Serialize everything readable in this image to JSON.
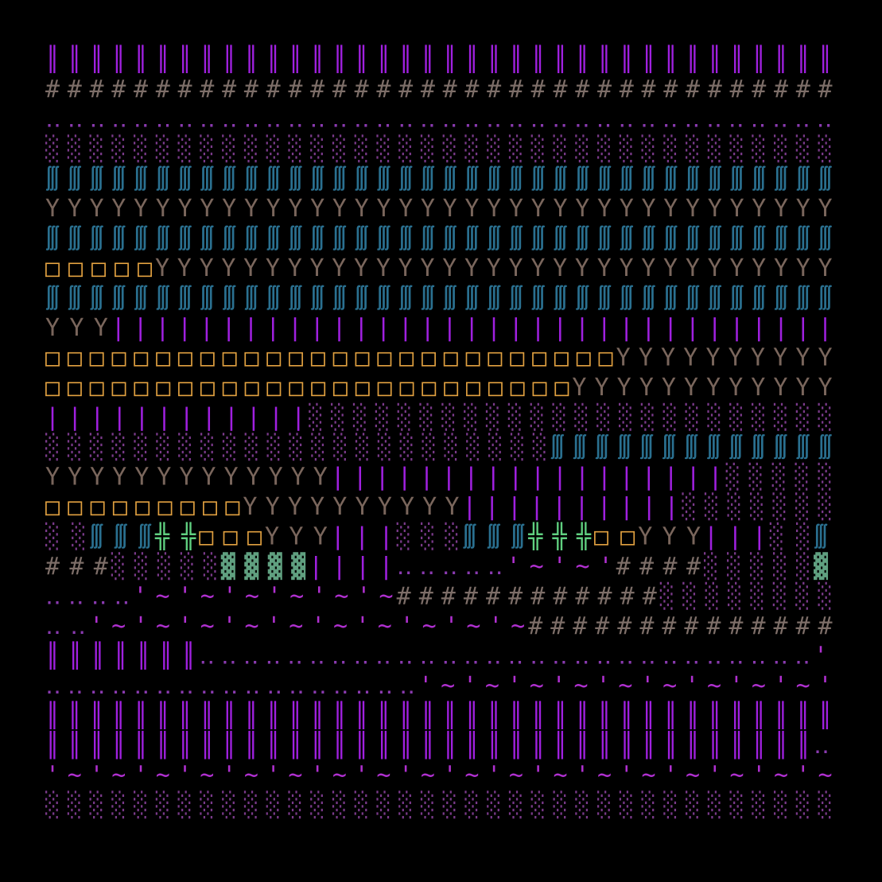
{
  "map": {
    "rows": [
      [
        {
          "text": "║║║║║║║║║║║║║║║║║║║║║║║║║║║║║║║║║║║║",
          "color": "#a020e0"
        }
      ],
      [
        {
          "text": "####################################",
          "color": "#7d6e68"
        }
      ],
      [
        {
          "text": "‥‥‥‥‥‥‥‥‥‥‥‥‥‥‥‥‥‥‥‥‥‥‥‥‥‥‥‥‥‥‥‥‥‥‥‥",
          "color": "#8a3ab0"
        }
      ],
      [
        {
          "text": "░░░░░░░░░░░░░░░░░░░░░░░░░░░░░░░░░░░░",
          "color": "#7a3a8a"
        }
      ],
      [
        {
          "text": "∭∭∭∭∭∭∭∭∭∭∭∭∭∭∭∭∭∭∭∭∭∭∭∭∭∭∭∭∭∭∭∭∭∭∭∭",
          "color": "#2a7090"
        }
      ],
      [
        {
          "text": "YYYYYYYYYYYYYYYYYYYYYYYYYYYYYYYYYYYY",
          "color": "#7a665c"
        }
      ],
      [
        {
          "text": "∭∭∭∭∭∭∭∭∭∭∭∭∭∭∭∭∭∭∭∭∭∭∭∭∭∭∭∭∭∭∭∭∭∭∭∭",
          "color": "#2a7090"
        }
      ],
      [
        {
          "text": "□□□□□",
          "color": "#e0a040"
        },
        {
          "text": "YYYYYYYYYYYYYYYYYYYYYYYYYYYYYYY",
          "color": "#7a665c"
        }
      ],
      [
        {
          "text": "∭∭∭∭∭∭∭∭∭∭∭∭∭∭∭∭∭∭∭∭∭∭∭∭∭∭∭∭∭∭∭∭∭∭∭∭",
          "color": "#2a7090"
        }
      ],
      [
        {
          "text": "YYY",
          "color": "#7a665c"
        },
        {
          "text": "|||||||||||||||||||||||||||||||||",
          "color": "#a020e0"
        }
      ],
      [
        {
          "text": "□□□□□□□□□□□□□□□□□□□□□□□□□□",
          "color": "#e0a040"
        },
        {
          "text": "YYYYYYYYYY",
          "color": "#7a665c"
        }
      ],
      [
        {
          "text": "□□□□□□□□□□□□□□□□□□□□□□□□",
          "color": "#e0a040"
        },
        {
          "text": "YYYYYYYYYYYY",
          "color": "#7a665c"
        }
      ],
      [
        {
          "text": "||||||||||||",
          "color": "#a020e0"
        },
        {
          "text": "░░░░░░░░░░░░░░░░░░░░░░░░",
          "color": "#7a3a8a"
        }
      ],
      [
        {
          "text": "░░░░░░░░░░░░░░░░░░░░░░░",
          "color": "#7a3a8a"
        },
        {
          "text": "∭∭∭∭∭∭∭∭∭∭∭∭∭",
          "color": "#2a7090"
        }
      ],
      [
        {
          "text": "YYYYYYYYYYYYY",
          "color": "#7a665c"
        },
        {
          "text": "||||||||||||||||||",
          "color": "#a020e0"
        },
        {
          "text": "░░░░░",
          "color": "#7a3a8a"
        }
      ],
      [
        {
          "text": "□□□□□□□□□",
          "color": "#e0a040"
        },
        {
          "text": "YYYYYYYYYY",
          "color": "#7a665c"
        },
        {
          "text": "||||||||||",
          "color": "#a020e0"
        },
        {
          "text": "░░░░░░░",
          "color": "#7a3a8a"
        }
      ],
      [
        {
          "text": "░░",
          "color": "#7a3a8a"
        },
        {
          "text": "∭∭∭",
          "color": "#2a7090"
        },
        {
          "text": "╬╬",
          "color": "#60d080"
        },
        {
          "text": "□□□",
          "color": "#e0a040"
        },
        {
          "text": "YYY",
          "color": "#7a665c"
        },
        {
          "text": "|||",
          "color": "#a020e0"
        },
        {
          "text": "░░░",
          "color": "#7a3a8a"
        },
        {
          "text": "∭∭∭",
          "color": "#2a7090"
        },
        {
          "text": "╬╬╬",
          "color": "#60d080"
        },
        {
          "text": "□□",
          "color": "#e0a040"
        },
        {
          "text": "YYY",
          "color": "#7a665c"
        },
        {
          "text": "|||",
          "color": "#a020e0"
        },
        {
          "text": "░░",
          "color": "#7a3a8a"
        },
        {
          "text": "∭",
          "color": "#2a7090"
        }
      ],
      [
        {
          "text": "###",
          "color": "#7d6e68"
        },
        {
          "text": "░░░░░",
          "color": "#7a3a8a"
        },
        {
          "text": "▓▓▓▓",
          "color": "#60a080"
        },
        {
          "text": "||||",
          "color": "#a020e0"
        },
        {
          "text": "‥‥‥‥‥",
          "color": "#8a3ab0"
        },
        {
          "text": "'~'~'",
          "color": "#b030d0"
        },
        {
          "text": "####",
          "color": "#7d6e68"
        },
        {
          "text": "░░░░░",
          "color": "#7a3a8a"
        },
        {
          "text": "▓",
          "color": "#60a080"
        }
      ],
      [
        {
          "text": "‥‥‥‥",
          "color": "#8a3ab0"
        },
        {
          "text": "'~'~'~'~'~'~",
          "color": "#b030d0"
        },
        {
          "text": "############",
          "color": "#7d6e68"
        },
        {
          "text": "░░░░░░░░",
          "color": "#7a3a8a"
        }
      ],
      [
        {
          "text": "‥‥",
          "color": "#8a3ab0"
        },
        {
          "text": "'~'~'~'~'~'~'~'~'~'~",
          "color": "#b030d0"
        },
        {
          "text": "##############",
          "color": "#7d6e68"
        }
      ],
      [
        {
          "text": "║║║║║║║",
          "color": "#a020e0"
        },
        {
          "text": "‥‥‥‥‥‥‥‥‥‥‥‥‥‥‥‥‥‥‥‥‥‥‥‥‥‥‥‥",
          "color": "#8a3ab0"
        },
        {
          "text": "'",
          "color": "#b030d0"
        }
      ],
      [
        {
          "text": "‥‥‥‥‥‥‥‥‥‥‥‥‥‥‥‥‥",
          "color": "#8a3ab0"
        },
        {
          "text": "'~'~'~'~'~'~'~'~'~'",
          "color": "#b030d0"
        }
      ],
      [
        {
          "text": "║║║║║║║║║║║║║║║║║║║║║║║║║║║║║║║║║║║║",
          "color": "#a020e0"
        }
      ],
      [
        {
          "text": "║║║║║║║║║║║║║║║║║║║║║║║║║║║║║║║║║║║",
          "color": "#a020e0"
        },
        {
          "text": "‥",
          "color": "#8a3ab0"
        }
      ],
      [
        {
          "text": "'~'~'~'~'~'~'~'~'~'~'~'~'~'~'~'~'~'~",
          "color": "#b030d0"
        }
      ],
      [
        {
          "text": "░░░░░░░░░░░░░░░░░░░░░░░░░░░░░░░░░░░░",
          "color": "#7a3a8a"
        }
      ]
    ]
  }
}
